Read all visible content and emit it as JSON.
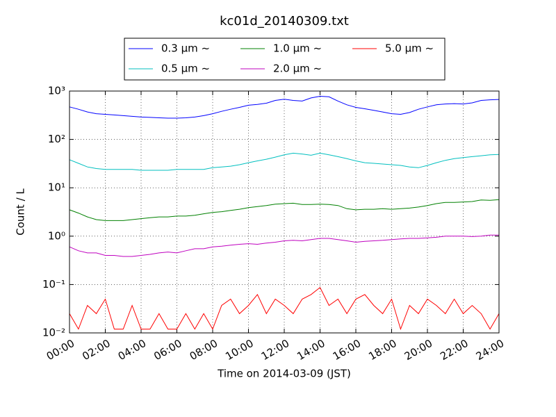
{
  "chart_data": {
    "type": "line",
    "title": "kc01d_20140309.txt",
    "xlabel": "Time on 2014-03-09 (JST)",
    "ylabel": "Count / L",
    "log_y": true,
    "grid": true,
    "legend": "upper center",
    "x": [
      0,
      0.5,
      1,
      1.5,
      2,
      2.5,
      3,
      3.5,
      4,
      4.5,
      5,
      5.5,
      6,
      6.5,
      7,
      7.5,
      8,
      8.5,
      9,
      9.5,
      10,
      10.5,
      11,
      11.5,
      12,
      12.5,
      13,
      13.5,
      14,
      14.5,
      15,
      15.5,
      16,
      16.5,
      17,
      17.5,
      18,
      18.5,
      19,
      19.5,
      20,
      20.5,
      21,
      21.5,
      22,
      22.5,
      23,
      23.5,
      24
    ],
    "xlim": [
      0,
      24
    ],
    "xticks": [
      {
        "value": 0,
        "label": "00:00"
      },
      {
        "value": 2,
        "label": "02:00"
      },
      {
        "value": 4,
        "label": "04:00"
      },
      {
        "value": 6,
        "label": "06:00"
      },
      {
        "value": 8,
        "label": "08:00"
      },
      {
        "value": 10,
        "label": "10:00"
      },
      {
        "value": 12,
        "label": "12:00"
      },
      {
        "value": 14,
        "label": "14:00"
      },
      {
        "value": 16,
        "label": "16:00"
      },
      {
        "value": 18,
        "label": "18:00"
      },
      {
        "value": 20,
        "label": "20:00"
      },
      {
        "value": 22,
        "label": "22:00"
      },
      {
        "value": 24,
        "label": "24:00"
      }
    ],
    "ylim": [
      0.01,
      1000
    ],
    "yticks": [
      {
        "value": 0.01,
        "label": "10⁻²"
      },
      {
        "value": 0.1,
        "label": "10⁻¹"
      },
      {
        "value": 1,
        "label": "10⁰"
      },
      {
        "value": 10,
        "label": "10¹"
      },
      {
        "value": 100,
        "label": "10²"
      },
      {
        "value": 1000,
        "label": "10³"
      }
    ],
    "series": [
      {
        "name": "0.3 μm ~",
        "color": "#0000ff",
        "values": [
          470,
          420,
          370,
          340,
          330,
          320,
          310,
          300,
          290,
          285,
          280,
          275,
          275,
          280,
          290,
          310,
          340,
          380,
          420,
          460,
          510,
          530,
          560,
          640,
          680,
          640,
          620,
          720,
          780,
          760,
          620,
          520,
          460,
          430,
          400,
          370,
          340,
          330,
          360,
          420,
          470,
          520,
          540,
          550,
          540,
          570,
          640,
          660,
          670
        ]
      },
      {
        "name": "0.5 μm ~",
        "color": "#00bfbf",
        "values": [
          38,
          32,
          27,
          25,
          24,
          24,
          24,
          24,
          23,
          23,
          23,
          23,
          24,
          24,
          24,
          24,
          26,
          27,
          28,
          30,
          33,
          36,
          39,
          43,
          48,
          52,
          50,
          47,
          52,
          48,
          44,
          40,
          36,
          33,
          32,
          31,
          30,
          29,
          27,
          26,
          29,
          33,
          37,
          40,
          42,
          44,
          46,
          48,
          49
        ]
      },
      {
        "name": "1.0 μm ~",
        "color": "#008000",
        "values": [
          3.5,
          3.0,
          2.5,
          2.2,
          2.1,
          2.1,
          2.1,
          2.2,
          2.3,
          2.4,
          2.5,
          2.5,
          2.6,
          2.6,
          2.7,
          2.9,
          3.1,
          3.2,
          3.4,
          3.6,
          3.9,
          4.1,
          4.3,
          4.6,
          4.7,
          4.8,
          4.5,
          4.5,
          4.6,
          4.5,
          4.3,
          3.7,
          3.5,
          3.6,
          3.6,
          3.7,
          3.6,
          3.7,
          3.8,
          4.0,
          4.3,
          4.7,
          5.0,
          5.0,
          5.1,
          5.2,
          5.6,
          5.5,
          5.7
        ]
      },
      {
        "name": "2.0 μm ~",
        "color": "#bf00bf",
        "values": [
          0.6,
          0.5,
          0.45,
          0.45,
          0.4,
          0.4,
          0.38,
          0.38,
          0.4,
          0.42,
          0.45,
          0.47,
          0.45,
          0.5,
          0.55,
          0.55,
          0.6,
          0.62,
          0.65,
          0.68,
          0.7,
          0.68,
          0.72,
          0.75,
          0.8,
          0.82,
          0.8,
          0.85,
          0.9,
          0.9,
          0.85,
          0.8,
          0.75,
          0.78,
          0.8,
          0.82,
          0.85,
          0.88,
          0.9,
          0.9,
          0.92,
          0.95,
          1.0,
          1.0,
          1.0,
          0.98,
          1.0,
          1.05,
          1.05
        ]
      },
      {
        "name": "5.0 μm ~",
        "color": "#ff0000",
        "values": [
          0.025,
          0.012,
          0.037,
          0.025,
          0.05,
          0.012,
          0.012,
          0.037,
          0.012,
          0.012,
          0.025,
          0.012,
          0.012,
          0.025,
          0.012,
          0.025,
          0.012,
          0.037,
          0.05,
          0.025,
          0.037,
          0.062,
          0.025,
          0.05,
          0.037,
          0.025,
          0.05,
          0.062,
          0.087,
          0.037,
          0.05,
          0.025,
          0.05,
          0.062,
          0.037,
          0.025,
          0.05,
          0.012,
          0.037,
          0.025,
          0.05,
          0.037,
          0.025,
          0.05,
          0.025,
          0.037,
          0.025,
          0.012,
          0.025
        ]
      }
    ]
  }
}
